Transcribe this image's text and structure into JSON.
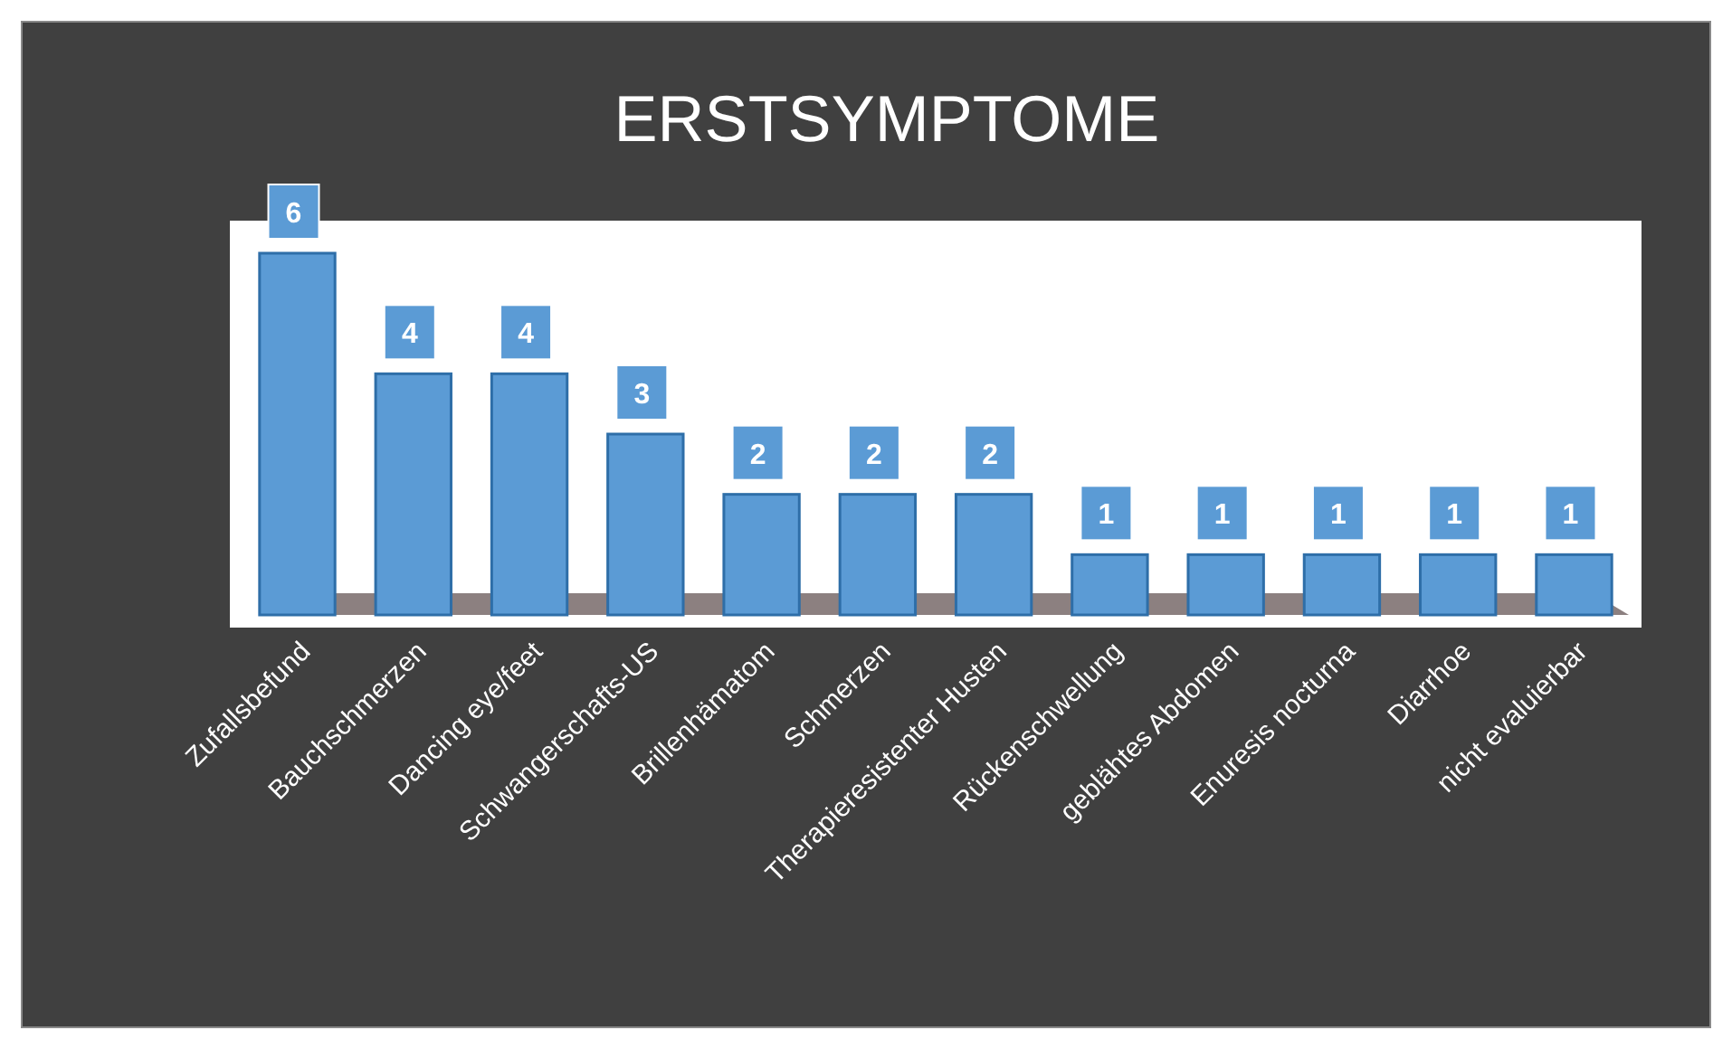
{
  "chart_data": {
    "type": "bar",
    "title": "ERSTSYMPTOME",
    "categories": [
      "Zufallsbefund",
      "Bauchschmerzen",
      "Dancing eye/feet",
      "Schwangerschafts-US",
      "Brillenhämatom",
      "Schmerzen",
      "Therapieresistenter Husten",
      "Rückenschwellung",
      "geblähtes Abdomen",
      "Enuresis nocturna",
      "Diarrhoe",
      "nicht evaluierbar"
    ],
    "values": [
      6,
      4,
      4,
      3,
      2,
      2,
      2,
      1,
      1,
      1,
      1,
      1
    ],
    "color": "#5b9bd5",
    "data_labels": true
  }
}
